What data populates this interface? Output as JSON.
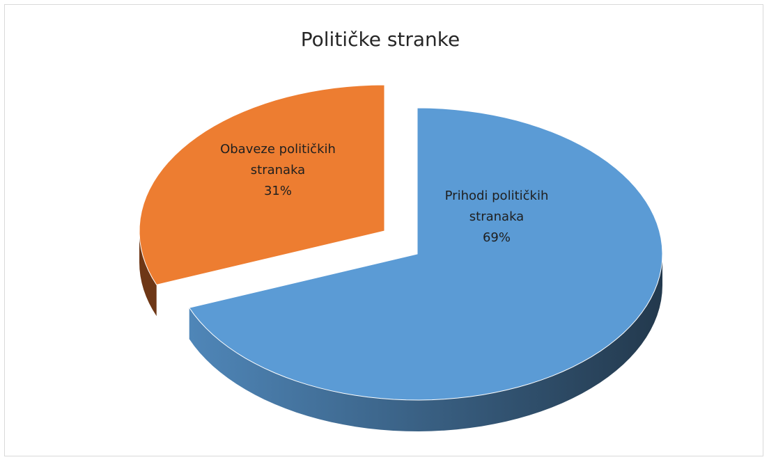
{
  "chart_data": {
    "type": "pie",
    "style": "3d-exploded",
    "title": "Političke stranke",
    "slices": [
      {
        "label_lines": [
          "Prihodi političkih",
          "stranaka"
        ],
        "value": 69,
        "value_label": "69%",
        "color": "#5b9bd5",
        "side_color_dark": "#23394d",
        "side_color_light": "#4f86b8"
      },
      {
        "label_lines": [
          "Obaveze političkih",
          "stranaka"
        ],
        "value": 31,
        "value_label": "31%",
        "color": "#ed7d31",
        "side_color_dark": "#5e2f12",
        "side_color_light": "#6e3716"
      }
    ],
    "legend": "none"
  }
}
